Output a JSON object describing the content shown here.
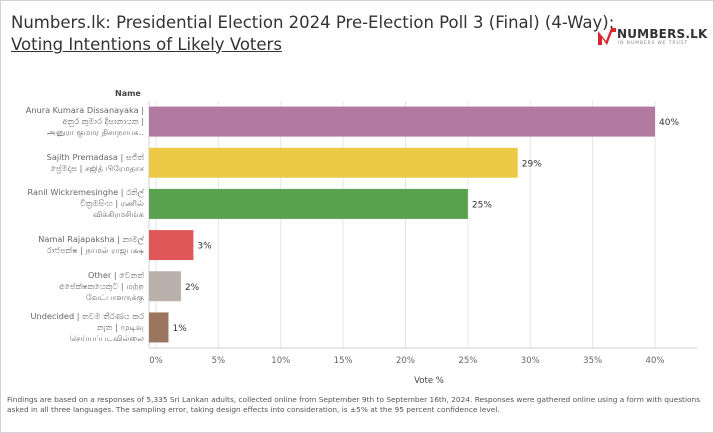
{
  "header": {
    "title_line1": "Numbers.lk: Presidential Election 2024 Pre-Election Poll 3 (Final) (4-Way):",
    "title_line2": "Voting Intentions of Likely Voters"
  },
  "logo": {
    "wordmark": "NUMBERS.LK",
    "tagline": "IN NUMBERS WE TRUST",
    "color": "#d9262e"
  },
  "chart_data": {
    "type": "bar",
    "orientation": "horizontal",
    "category_header": "Name",
    "categories": [
      [
        "Anura Kumara Dissanayaka |",
        "අනුර කුමාර දිසානායක |",
        "அனுரா குமார திசாநாயக.."
      ],
      [
        "Sajith Premadasa | සජිත්",
        "ප්‍රේමදාස | சஜித் பிரேமதாச"
      ],
      [
        "Ranil Wickremesinghe | රනිල්",
        "වික්‍රමසිංහ | ரணில்",
        "விக்கிரமசிங்க"
      ],
      [
        "Namal Rajapaksha | නාමල්",
        "රාජපක්ෂ | நாமல் ராஜபக்ஷ"
      ],
      [
        "Other | වෙනත්",
        "අපේක්ෂකයෙකුට | மற்ற",
        "வேட்பாளருக்கு"
      ],
      [
        "Undecided | තවම තීරණය කර",
        "නැත | முடிவு",
        "செய்யப்படவில்லை"
      ]
    ],
    "values": [
      40,
      29,
      25,
      3,
      2,
      1
    ],
    "value_labels": [
      "40%",
      "29%",
      "25%",
      "3%",
      "2%",
      "1%"
    ],
    "colors": [
      "#b07aa1",
      "#edc948",
      "#59a14f",
      "#e15759",
      "#bab0ac",
      "#9c755f"
    ],
    "xlabel": "Vote %",
    "xlim": [
      0,
      42
    ],
    "xticks": [
      0,
      5,
      10,
      15,
      20,
      25,
      30,
      35,
      40
    ],
    "xtick_labels": [
      "0%",
      "5%",
      "10%",
      "15%",
      "20%",
      "25%",
      "30%",
      "35%",
      "40%"
    ],
    "grid": true
  },
  "footer": {
    "text": "Findings are based on a responses of 5,335 Sri Lankan adults, collected online from September 9th to September 16th, 2024. Responses were gathered online using a form with questions asked in all three languages. The sampling error, taking design effects into consideration, is ±5% at the 95 percent confidence level."
  }
}
